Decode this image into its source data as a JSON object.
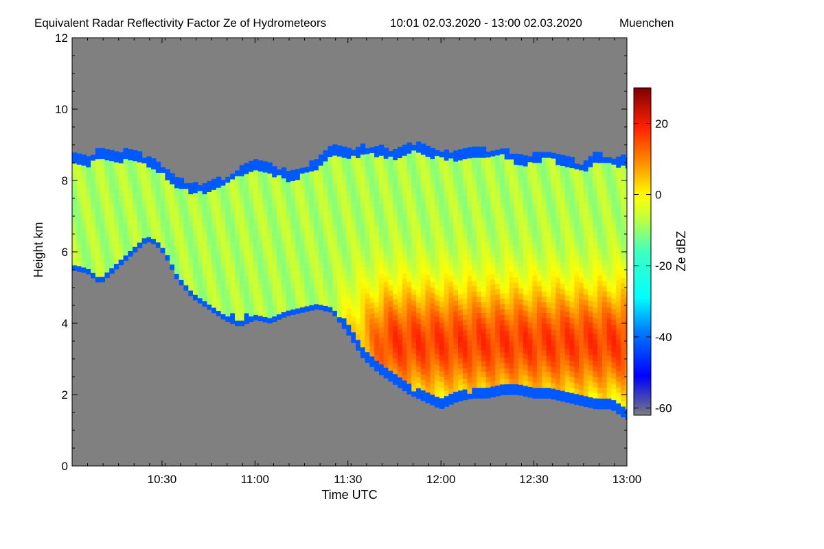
{
  "chart_data": {
    "type": "heatmap",
    "title": "Equivalent Radar Reflectivity Factor Ze of Hydrometeors",
    "time_range": "10:01 02.03.2020 - 13:00 02.03.2020",
    "location": "Muenchen",
    "xlabel": "Time UTC",
    "ylabel": "Height km",
    "xlim_minutes_utc": [
      601,
      780
    ],
    "ylim_km": [
      0,
      12
    ],
    "x_ticks": [
      {
        "minute": 630,
        "label": "10:30"
      },
      {
        "minute": 660,
        "label": "11:00"
      },
      {
        "minute": 690,
        "label": "11:30"
      },
      {
        "minute": 720,
        "label": "12:00"
      },
      {
        "minute": 750,
        "label": "12:30"
      },
      {
        "minute": 780,
        "label": "13:00"
      }
    ],
    "y_ticks": [
      {
        "value": 0,
        "label": "0"
      },
      {
        "value": 2,
        "label": "2"
      },
      {
        "value": 4,
        "label": "4"
      },
      {
        "value": 6,
        "label": "6"
      },
      {
        "value": 8,
        "label": "8"
      },
      {
        "value": 10,
        "label": "10"
      },
      {
        "value": 12,
        "label": "12"
      }
    ],
    "colorbar": {
      "label": "Ze dBZ",
      "range_dbz": [
        -62,
        30
      ],
      "ticks": [
        {
          "value": 20,
          "label": "20"
        },
        {
          "value": 0,
          "label": "0"
        },
        {
          "value": -20,
          "label": "-20"
        },
        {
          "value": -40,
          "label": "-40"
        },
        {
          "value": -60,
          "label": "-60"
        }
      ]
    },
    "no_signal_color": "#808080",
    "cloud": {
      "times_min": [
        601,
        606,
        610,
        615,
        620,
        625,
        628,
        631,
        635,
        640,
        645,
        650,
        655,
        660,
        665,
        670,
        675,
        680,
        685,
        690,
        695,
        700,
        705,
        710,
        715,
        720,
        725,
        730,
        735,
        740,
        745,
        750,
        755,
        760,
        765,
        770,
        775,
        780
      ],
      "top_km": [
        8.7,
        8.6,
        8.8,
        8.7,
        8.8,
        8.6,
        8.5,
        8.3,
        8.0,
        7.8,
        7.9,
        8.0,
        8.3,
        8.5,
        8.4,
        8.2,
        8.3,
        8.5,
        8.9,
        8.8,
        8.9,
        8.9,
        8.8,
        9.0,
        8.9,
        8.8,
        8.7,
        8.9,
        8.8,
        8.9,
        8.6,
        8.7,
        8.8,
        8.6,
        8.4,
        8.7,
        8.6,
        8.6
      ],
      "base_km": [
        5.5,
        5.4,
        5.1,
        5.5,
        5.9,
        6.3,
        6.2,
        5.9,
        5.2,
        4.7,
        4.4,
        4.1,
        3.9,
        4.1,
        4.0,
        4.2,
        4.3,
        4.4,
        4.3,
        3.7,
        3.0,
        2.6,
        2.3,
        2.0,
        1.8,
        1.6,
        1.8,
        1.9,
        1.9,
        2.0,
        2.0,
        1.9,
        1.9,
        1.8,
        1.7,
        1.6,
        1.6,
        1.3
      ],
      "precip_start_min": 682,
      "max_dbz_height_km": 3.4
    }
  }
}
